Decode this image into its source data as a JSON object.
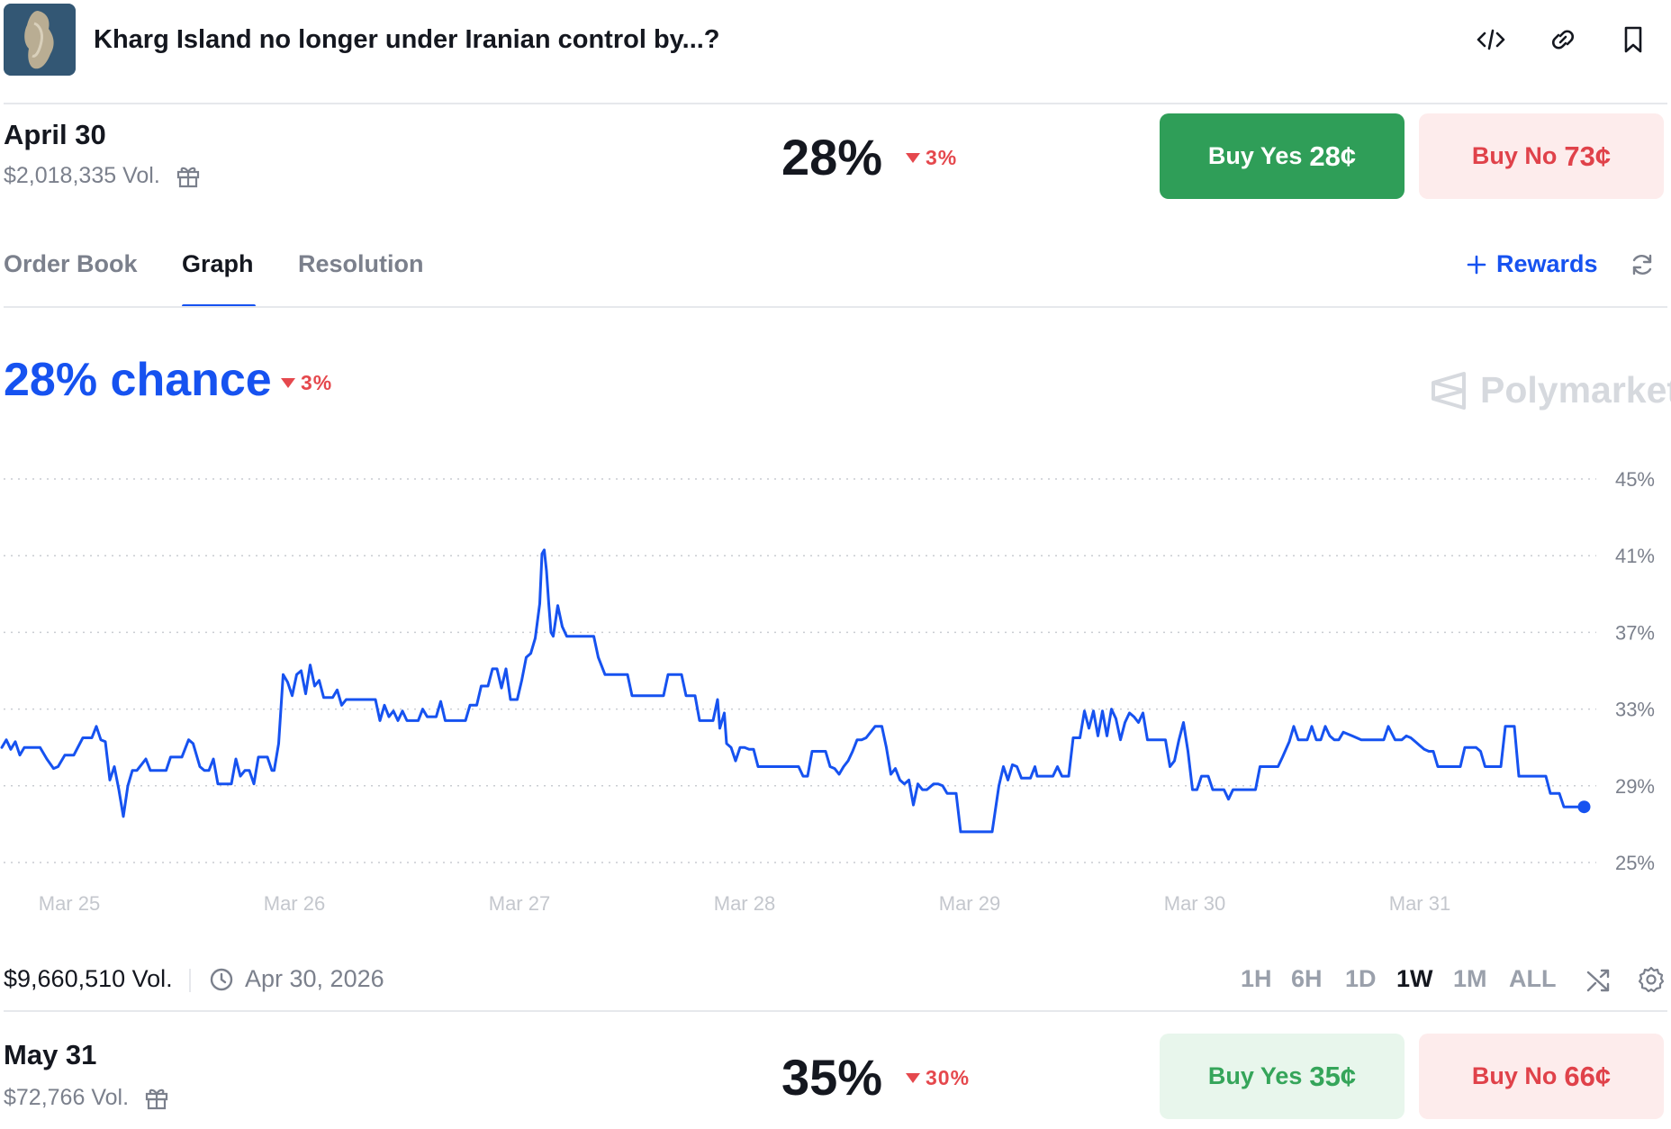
{
  "header": {
    "title": "Kharg Island no longer under Iranian control by...?",
    "icons": [
      "code-icon",
      "link-icon",
      "bookmark-icon"
    ]
  },
  "markets": [
    {
      "date": "April 30",
      "volume": "$2,018,335 Vol.",
      "percent": "28%",
      "change": "3%",
      "yes_label": "Buy Yes",
      "yes_price": "28¢",
      "no_label": "Buy No",
      "no_price": "73¢"
    },
    {
      "date": "May 31",
      "volume": "$72,766 Vol.",
      "percent": "35%",
      "change": "30%",
      "yes_label": "Buy Yes",
      "yes_price": "35¢",
      "no_label": "Buy No",
      "no_price": "66¢"
    }
  ],
  "tabs": [
    "Order Book",
    "Graph",
    "Resolution"
  ],
  "active_tab": "Graph",
  "rewards_label": "Rewards",
  "chance": {
    "label": "28% chance",
    "change": "3%"
  },
  "brand": "Polymarket",
  "colors": {
    "accent": "#1652f0",
    "up": "#2f9e58",
    "down": "#e5484d"
  },
  "bottom": {
    "volume": "$9,660,510 Vol.",
    "end_date": "Apr 30, 2026",
    "ranges": [
      "1H",
      "6H",
      "1D",
      "1W",
      "1M",
      "ALL"
    ],
    "active_range": "1W"
  },
  "chart_data": {
    "type": "line",
    "title": "",
    "xlabel": "",
    "ylabel": "",
    "x_ticks": [
      "Mar 25",
      "Mar 26",
      "Mar 27",
      "Mar 28",
      "Mar 29",
      "Mar 30",
      "Mar 31"
    ],
    "y_ticks": [
      "25%",
      "29%",
      "33%",
      "37%",
      "41%",
      "45%"
    ],
    "ylim": [
      25,
      45
    ],
    "xlim": [
      24.7,
      31.73
    ],
    "grid": true,
    "series": [
      {
        "color": "#1652f0",
        "points": [
          [
            24.7,
            31.0
          ],
          [
            24.72,
            31.4
          ],
          [
            24.74,
            30.9
          ],
          [
            24.76,
            31.3
          ],
          [
            24.78,
            30.6
          ],
          [
            24.8,
            31.0
          ],
          [
            24.87,
            31.0
          ],
          [
            24.9,
            30.4
          ],
          [
            24.93,
            29.9
          ],
          [
            24.95,
            30.0
          ],
          [
            24.98,
            30.6
          ],
          [
            25.02,
            30.6
          ],
          [
            25.06,
            31.5
          ],
          [
            25.1,
            31.5
          ],
          [
            25.12,
            32.1
          ],
          [
            25.14,
            31.4
          ],
          [
            25.16,
            31.3
          ],
          [
            25.18,
            29.3
          ],
          [
            25.2,
            30.0
          ],
          [
            25.22,
            28.8
          ],
          [
            25.24,
            27.4
          ],
          [
            25.26,
            29.0
          ],
          [
            25.28,
            29.8
          ],
          [
            25.3,
            29.8
          ],
          [
            25.32,
            30.1
          ],
          [
            25.34,
            30.4
          ],
          [
            25.36,
            29.8
          ],
          [
            25.43,
            29.8
          ],
          [
            25.45,
            30.5
          ],
          [
            25.5,
            30.5
          ],
          [
            25.53,
            31.4
          ],
          [
            25.55,
            31.2
          ],
          [
            25.58,
            30.0
          ],
          [
            25.6,
            29.8
          ],
          [
            25.62,
            29.8
          ],
          [
            25.64,
            30.4
          ],
          [
            25.66,
            29.1
          ],
          [
            25.72,
            29.1
          ],
          [
            25.74,
            30.4
          ],
          [
            25.76,
            29.5
          ],
          [
            25.78,
            29.8
          ],
          [
            25.8,
            29.8
          ],
          [
            25.82,
            29.1
          ],
          [
            25.84,
            30.5
          ],
          [
            25.88,
            30.5
          ],
          [
            25.9,
            29.8
          ],
          [
            25.91,
            29.8
          ],
          [
            25.93,
            31.2
          ],
          [
            25.95,
            34.8
          ],
          [
            25.97,
            34.4
          ],
          [
            25.99,
            33.7
          ],
          [
            26.01,
            34.8
          ],
          [
            26.03,
            35.0
          ],
          [
            26.05,
            33.8
          ],
          [
            26.07,
            35.3
          ],
          [
            26.09,
            34.2
          ],
          [
            26.11,
            34.5
          ],
          [
            26.13,
            33.6
          ],
          [
            26.17,
            33.6
          ],
          [
            26.19,
            34.0
          ],
          [
            26.21,
            33.2
          ],
          [
            26.23,
            33.5
          ],
          [
            26.36,
            33.5
          ],
          [
            26.38,
            32.4
          ],
          [
            26.4,
            33.2
          ],
          [
            26.42,
            32.6
          ],
          [
            26.44,
            32.9
          ],
          [
            26.46,
            32.4
          ],
          [
            26.48,
            32.9
          ],
          [
            26.5,
            32.4
          ],
          [
            26.55,
            32.4
          ],
          [
            26.57,
            33.0
          ],
          [
            26.59,
            32.6
          ],
          [
            26.63,
            32.6
          ],
          [
            26.65,
            33.4
          ],
          [
            26.67,
            32.4
          ],
          [
            26.76,
            32.4
          ],
          [
            26.78,
            33.2
          ],
          [
            26.81,
            33.2
          ],
          [
            26.83,
            34.2
          ],
          [
            26.86,
            34.2
          ],
          [
            26.88,
            35.1
          ],
          [
            26.9,
            35.1
          ],
          [
            26.92,
            34.1
          ],
          [
            26.94,
            35.1
          ],
          [
            26.96,
            33.5
          ],
          [
            26.99,
            33.5
          ],
          [
            27.01,
            34.5
          ],
          [
            27.03,
            35.7
          ],
          [
            27.05,
            35.9
          ],
          [
            27.07,
            36.7
          ],
          [
            27.09,
            38.5
          ],
          [
            27.1,
            41.1
          ],
          [
            27.11,
            41.3
          ],
          [
            27.12,
            40.2
          ],
          [
            27.13,
            38.5
          ],
          [
            27.14,
            37.0
          ],
          [
            27.15,
            36.8
          ],
          [
            27.16,
            37.6
          ],
          [
            27.17,
            38.4
          ],
          [
            27.19,
            37.3
          ],
          [
            27.21,
            36.8
          ],
          [
            27.33,
            36.8
          ],
          [
            27.35,
            35.7
          ],
          [
            27.38,
            34.8
          ],
          [
            27.48,
            34.8
          ],
          [
            27.5,
            33.7
          ],
          [
            27.64,
            33.7
          ],
          [
            27.66,
            34.8
          ],
          [
            27.72,
            34.8
          ],
          [
            27.74,
            33.7
          ],
          [
            27.78,
            33.7
          ],
          [
            27.8,
            32.4
          ],
          [
            27.86,
            32.4
          ],
          [
            27.88,
            33.5
          ],
          [
            27.89,
            32.0
          ],
          [
            27.91,
            32.8
          ],
          [
            27.92,
            31.2
          ],
          [
            27.94,
            31.0
          ],
          [
            27.96,
            30.3
          ],
          [
            27.98,
            31.0
          ],
          [
            28.0,
            31.0
          ],
          [
            28.02,
            30.9
          ],
          [
            28.04,
            30.9
          ],
          [
            28.06,
            30.0
          ],
          [
            28.24,
            30.0
          ],
          [
            28.26,
            29.5
          ],
          [
            28.28,
            29.5
          ],
          [
            28.3,
            30.8
          ],
          [
            28.36,
            30.8
          ],
          [
            28.38,
            30.0
          ],
          [
            28.4,
            29.9
          ],
          [
            28.42,
            29.6
          ],
          [
            28.44,
            30.0
          ],
          [
            28.46,
            30.3
          ],
          [
            28.48,
            30.8
          ],
          [
            28.5,
            31.4
          ],
          [
            28.52,
            31.4
          ],
          [
            28.54,
            31.5
          ],
          [
            28.56,
            31.8
          ],
          [
            28.58,
            32.1
          ],
          [
            28.61,
            32.1
          ],
          [
            28.63,
            31.0
          ],
          [
            28.65,
            29.6
          ],
          [
            28.67,
            29.9
          ],
          [
            28.69,
            29.3
          ],
          [
            28.71,
            29.1
          ],
          [
            28.73,
            29.3
          ],
          [
            28.75,
            28.0
          ],
          [
            28.77,
            29.1
          ],
          [
            28.79,
            28.8
          ],
          [
            28.81,
            28.8
          ],
          [
            28.84,
            29.1
          ],
          [
            28.86,
            29.1
          ],
          [
            28.88,
            29.0
          ],
          [
            28.9,
            28.6
          ],
          [
            28.94,
            28.6
          ],
          [
            28.96,
            26.6
          ],
          [
            29.1,
            26.6
          ],
          [
            29.13,
            29.0
          ],
          [
            29.15,
            30.0
          ],
          [
            29.17,
            29.3
          ],
          [
            29.19,
            30.1
          ],
          [
            29.21,
            30.0
          ],
          [
            29.23,
            29.4
          ],
          [
            29.27,
            29.4
          ],
          [
            29.29,
            30.0
          ],
          [
            29.3,
            29.5
          ],
          [
            29.37,
            29.5
          ],
          [
            29.39,
            30.0
          ],
          [
            29.41,
            29.5
          ],
          [
            29.44,
            29.5
          ],
          [
            29.46,
            31.5
          ],
          [
            29.49,
            31.5
          ],
          [
            29.51,
            32.9
          ],
          [
            29.53,
            32.0
          ],
          [
            29.55,
            32.9
          ],
          [
            29.57,
            31.6
          ],
          [
            29.59,
            32.9
          ],
          [
            29.61,
            31.6
          ],
          [
            29.63,
            33.0
          ],
          [
            29.65,
            32.5
          ],
          [
            29.67,
            31.4
          ],
          [
            29.69,
            32.3
          ],
          [
            29.71,
            32.8
          ],
          [
            29.73,
            32.6
          ],
          [
            29.75,
            32.3
          ],
          [
            29.77,
            32.8
          ],
          [
            29.79,
            31.4
          ],
          [
            29.87,
            31.4
          ],
          [
            29.89,
            30.0
          ],
          [
            29.91,
            30.3
          ],
          [
            29.93,
            31.4
          ],
          [
            29.95,
            32.3
          ],
          [
            29.97,
            30.8
          ],
          [
            29.99,
            28.8
          ],
          [
            30.01,
            28.8
          ],
          [
            30.03,
            29.5
          ],
          [
            30.06,
            29.5
          ],
          [
            30.08,
            28.8
          ],
          [
            30.13,
            28.8
          ],
          [
            30.15,
            28.3
          ],
          [
            30.17,
            28.8
          ],
          [
            30.27,
            28.8
          ],
          [
            30.29,
            30.0
          ],
          [
            30.37,
            30.0
          ],
          [
            30.39,
            30.5
          ],
          [
            30.42,
            31.3
          ],
          [
            30.44,
            32.1
          ],
          [
            30.46,
            31.4
          ],
          [
            30.48,
            31.4
          ],
          [
            30.5,
            31.4
          ],
          [
            30.52,
            32.1
          ],
          [
            30.54,
            31.4
          ],
          [
            30.56,
            31.4
          ],
          [
            30.58,
            32.1
          ],
          [
            30.6,
            31.6
          ],
          [
            30.62,
            31.4
          ],
          [
            30.64,
            31.4
          ],
          [
            30.66,
            31.8
          ],
          [
            30.7,
            31.6
          ],
          [
            30.74,
            31.4
          ],
          [
            30.84,
            31.4
          ],
          [
            30.86,
            32.1
          ],
          [
            30.89,
            31.4
          ],
          [
            30.92,
            31.4
          ],
          [
            30.94,
            31.6
          ],
          [
            30.96,
            31.5
          ],
          [
            30.98,
            31.3
          ],
          [
            31.0,
            31.1
          ],
          [
            31.02,
            30.9
          ],
          [
            31.04,
            30.8
          ],
          [
            31.06,
            30.8
          ],
          [
            31.08,
            30.0
          ],
          [
            31.18,
            30.0
          ],
          [
            31.2,
            31.0
          ],
          [
            31.25,
            31.0
          ],
          [
            31.27,
            30.8
          ],
          [
            31.29,
            30.0
          ],
          [
            31.36,
            30.0
          ],
          [
            31.38,
            32.1
          ],
          [
            31.42,
            32.1
          ],
          [
            31.44,
            29.5
          ],
          [
            31.56,
            29.5
          ],
          [
            31.58,
            28.6
          ],
          [
            31.62,
            28.6
          ],
          [
            31.64,
            27.9
          ],
          [
            31.73,
            27.9
          ]
        ]
      }
    ]
  }
}
